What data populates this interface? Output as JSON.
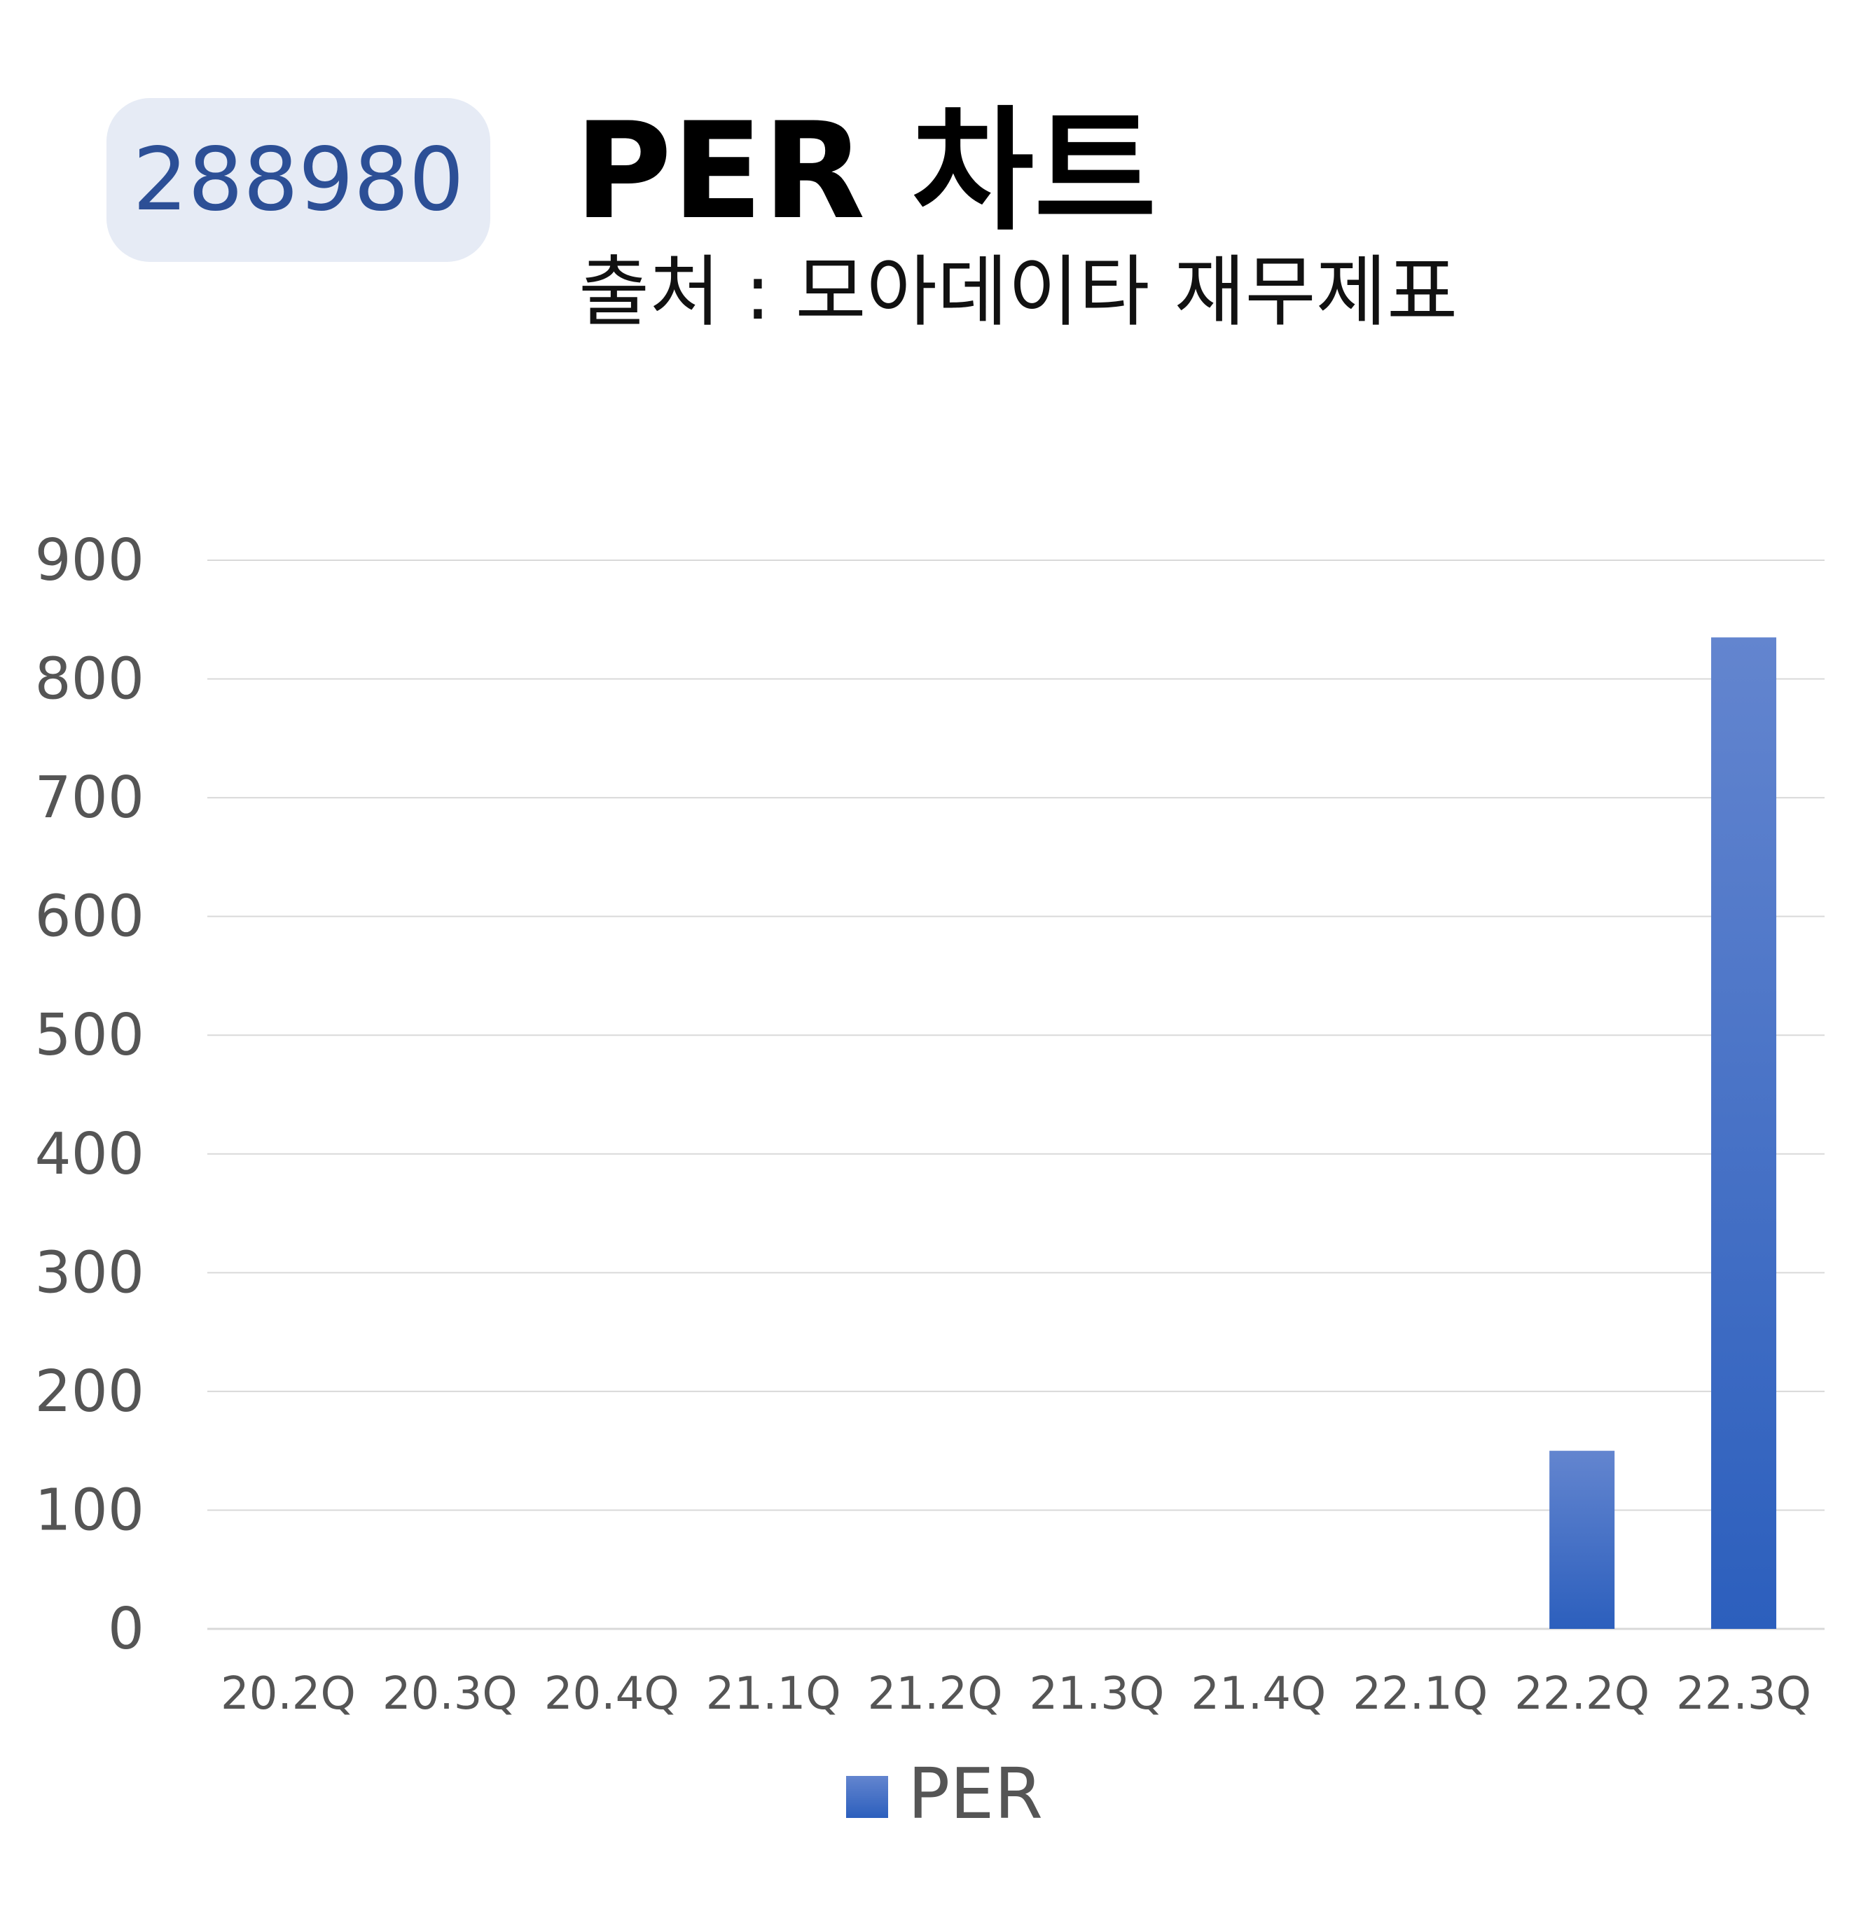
{
  "badge": {
    "code": "288980"
  },
  "header": {
    "title": "PER 차트",
    "subtitle": "출처 : 모아데이타 재무제표"
  },
  "colors": {
    "bar_top": "#6385cf",
    "bar_bottom": "#2c5fbd",
    "grid": "#d9d9d9",
    "badge_bg": "#e6ebf5",
    "badge_text": "#2c4f96"
  },
  "chart_data": {
    "type": "bar",
    "categories": [
      "20.2Q",
      "20.3Q",
      "20.4Q",
      "21.1Q",
      "21.2Q",
      "21.3Q",
      "21.4Q",
      "22.1Q",
      "22.2Q",
      "22.3Q"
    ],
    "series": [
      {
        "name": "PER",
        "values": [
          null,
          null,
          null,
          null,
          null,
          null,
          null,
          null,
          150,
          835
        ]
      }
    ],
    "yticks": [
      "0",
      "100",
      "200",
      "300",
      "400",
      "500",
      "600",
      "700",
      "800",
      "900"
    ],
    "ylim": [
      0,
      900
    ],
    "grid": true,
    "legend": "bottom-center"
  }
}
